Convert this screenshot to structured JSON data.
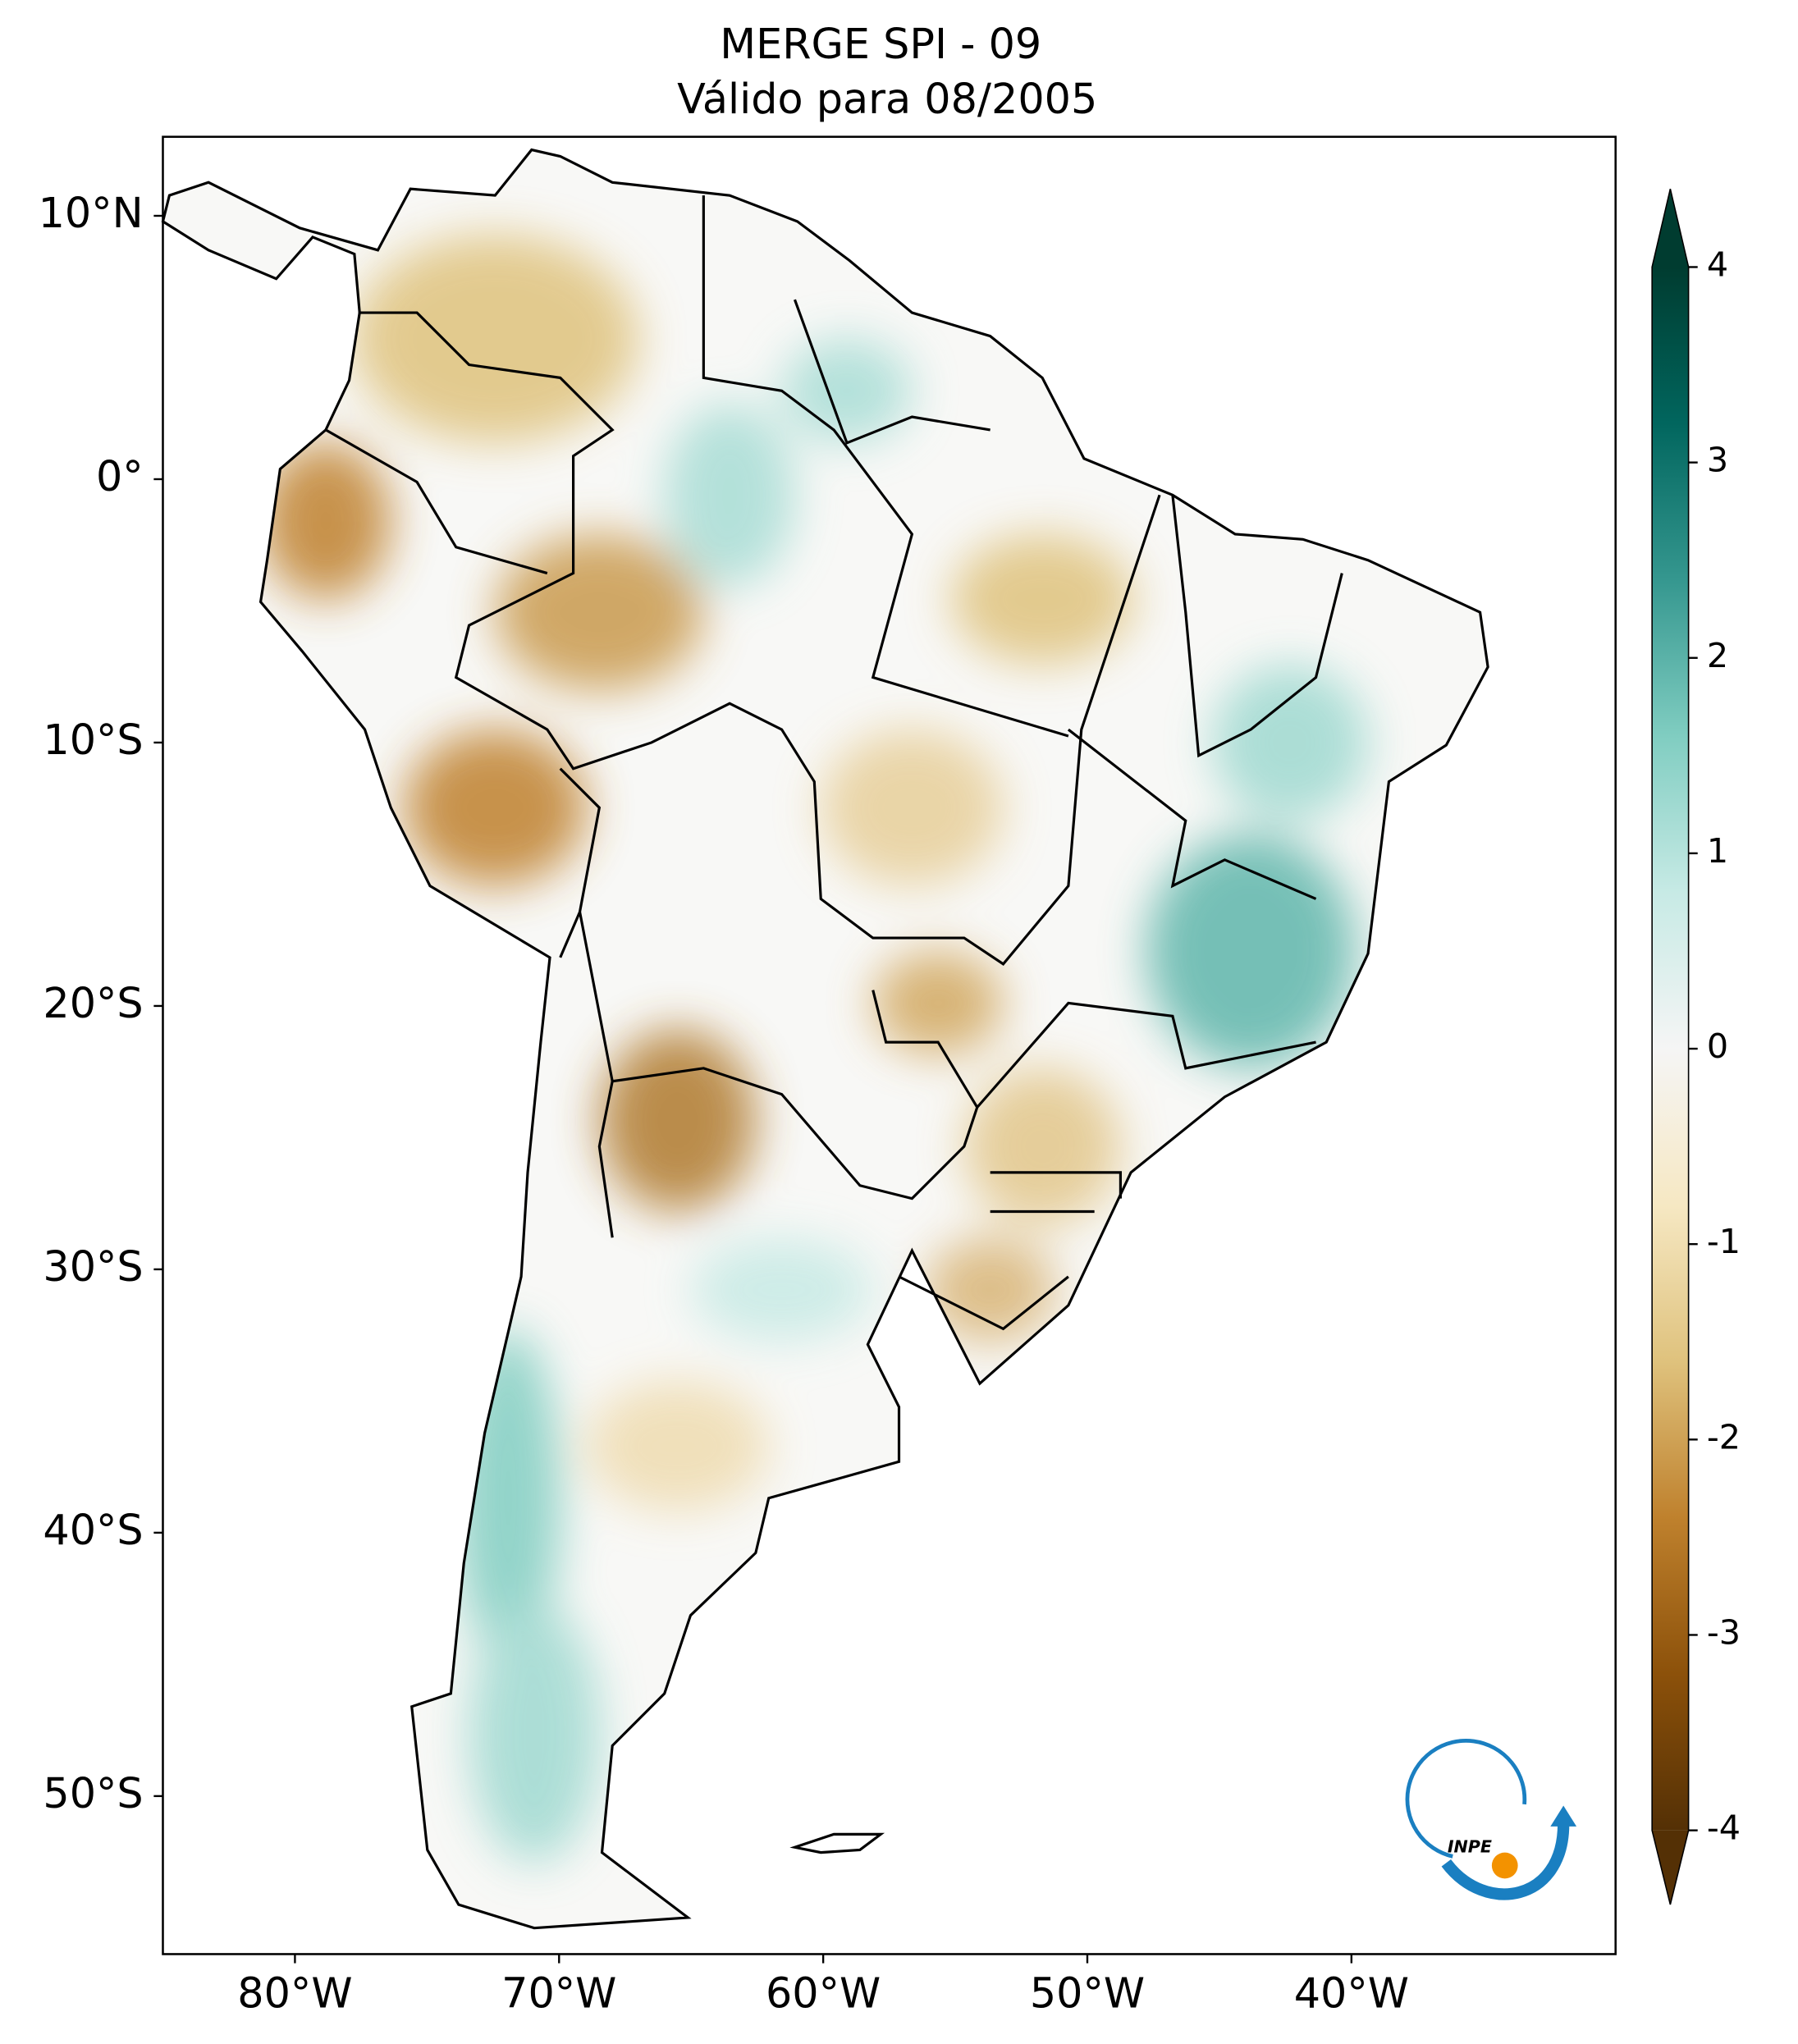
{
  "chart_data": {
    "type": "map",
    "title": [
      "MERGE   SPI - 09",
      "Válido para 08/2005"
    ],
    "xlim": [
      -85,
      -30
    ],
    "ylim": [
      -56,
      13
    ],
    "xticks": [
      {
        "value": -80,
        "label": "80°W"
      },
      {
        "value": -70,
        "label": "70°W"
      },
      {
        "value": -60,
        "label": "60°W"
      },
      {
        "value": -50,
        "label": "50°W"
      },
      {
        "value": -40,
        "label": "40°W"
      }
    ],
    "yticks": [
      {
        "value": 10,
        "label": "10°N"
      },
      {
        "value": 0,
        "label": "0°"
      },
      {
        "value": -10,
        "label": "10°S"
      },
      {
        "value": -20,
        "label": "20°S"
      },
      {
        "value": -30,
        "label": "30°S"
      },
      {
        "value": -40,
        "label": "40°S"
      },
      {
        "value": -50,
        "label": "50°S"
      }
    ],
    "colorbar": {
      "lim": [
        -4,
        4
      ],
      "ticks": [
        -4,
        -3,
        -2,
        -1,
        0,
        1,
        2,
        3,
        4
      ],
      "colormap": [
        "#543005",
        "#8c510a",
        "#bf812d",
        "#dfc27d",
        "#f6e8c3",
        "#f5f5f5",
        "#c7eae5",
        "#80cdc1",
        "#35978f",
        "#01665e",
        "#003c30"
      ]
    },
    "logo_text": "INPE"
  }
}
